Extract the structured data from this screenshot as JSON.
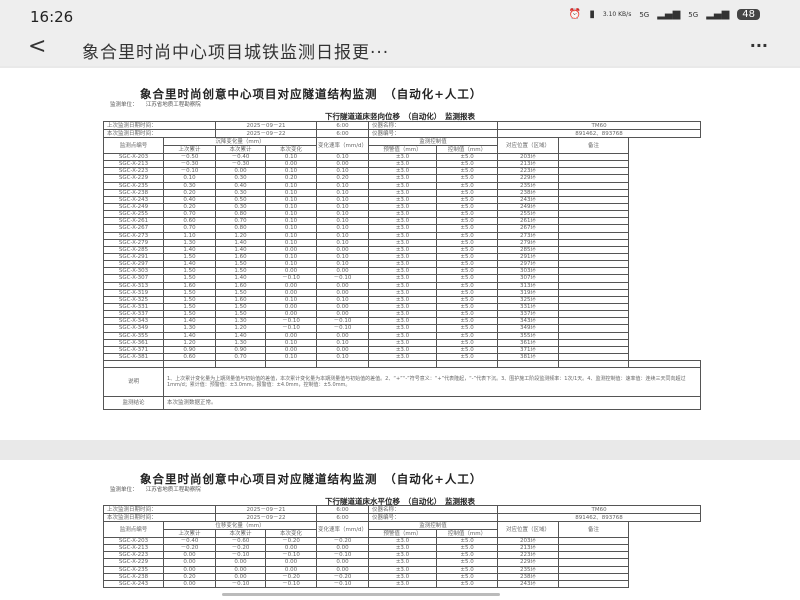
{
  "status_bar": {
    "time": "16:26",
    "net_speed": "3.10 KB/s",
    "signal1": "5G",
    "signal2": "5G",
    "battery": "48"
  },
  "app": {
    "title": "象合里时尚中心项目城铁监测日报更···",
    "back_icon": "chevron-left",
    "more_icon": "ellipsis"
  },
  "doc_title": "象合里时尚创意中心项目对应隧道结构监测　（自动化+人工）",
  "unit_label": "监测单位：",
  "unit_value": "江苏省地质工程勘察院",
  "info": {
    "last_label": "上次监测日期时间：",
    "last_date": "2025－09－21",
    "last_time": "6:00",
    "now_label": "本次监测日期时间：",
    "now_date": "2025－09－22",
    "now_time": "6:00",
    "inst_name_label": "仪器名称：",
    "inst_name": "TM60",
    "inst_no_label": "仪器编号：",
    "inst_no": "891462、893768"
  },
  "headers": {
    "point": "监测点编号",
    "rate": "变化速率（mm/d）",
    "control": "监测控制值",
    "warn": "预警值（mm）",
    "ctrl": "控制值（mm）",
    "pos": "对应位置（区域）",
    "remark": "备注",
    "last_cum": "上次累计",
    "this_cum": "本次累计",
    "this_chg": "本次变化"
  },
  "table1": {
    "subtitle": "下行隧道道床竖向位移　（自动化）　监测报表",
    "group": "沉降变化量（mm）",
    "rows": [
      [
        "SGC-X-203",
        "－0.50",
        "－0.40",
        "0.10",
        "0.10",
        "±3.0",
        "±5.0",
        "203环"
      ],
      [
        "SGC-X-213",
        "－0.30",
        "－0.30",
        "0.00",
        "0.00",
        "±3.0",
        "±5.0",
        "213环"
      ],
      [
        "SGC-X-223",
        "－0.10",
        "0.00",
        "0.10",
        "0.10",
        "±3.0",
        "±5.0",
        "223环"
      ],
      [
        "SGC-X-229",
        "0.10",
        "0.30",
        "0.20",
        "0.20",
        "±3.0",
        "±5.0",
        "229环"
      ],
      [
        "SGC-X-235",
        "0.30",
        "0.40",
        "0.10",
        "0.10",
        "±3.0",
        "±5.0",
        "235环"
      ],
      [
        "SGC-X-238",
        "0.20",
        "0.30",
        "0.10",
        "0.10",
        "±3.0",
        "±5.0",
        "238环"
      ],
      [
        "SGC-X-243",
        "0.40",
        "0.50",
        "0.10",
        "0.10",
        "±3.0",
        "±5.0",
        "243环"
      ],
      [
        "SGC-X-249",
        "0.20",
        "0.30",
        "0.10",
        "0.10",
        "±3.0",
        "±5.0",
        "249环"
      ],
      [
        "SGC-X-255",
        "0.70",
        "0.80",
        "0.10",
        "0.10",
        "±3.0",
        "±5.0",
        "255环"
      ],
      [
        "SGC-X-261",
        "0.60",
        "0.70",
        "0.10",
        "0.10",
        "±3.0",
        "±5.0",
        "261环"
      ],
      [
        "SGC-X-267",
        "0.70",
        "0.80",
        "0.10",
        "0.10",
        "±3.0",
        "±5.0",
        "267环"
      ],
      [
        "SGC-X-273",
        "1.10",
        "1.20",
        "0.10",
        "0.10",
        "±3.0",
        "±5.0",
        "273环"
      ],
      [
        "SGC-X-279",
        "1.30",
        "1.40",
        "0.10",
        "0.10",
        "±3.0",
        "±5.0",
        "279环"
      ],
      [
        "SGC-X-285",
        "1.40",
        "1.40",
        "0.00",
        "0.00",
        "±3.0",
        "±5.0",
        "285环"
      ],
      [
        "SGC-X-291",
        "1.50",
        "1.60",
        "0.10",
        "0.10",
        "±3.0",
        "±5.0",
        "291环"
      ],
      [
        "SGC-X-297",
        "1.40",
        "1.50",
        "0.10",
        "0.10",
        "±3.0",
        "±5.0",
        "297环"
      ],
      [
        "SGC-X-303",
        "1.50",
        "1.50",
        "0.00",
        "0.00",
        "±3.0",
        "±5.0",
        "303环"
      ],
      [
        "SGC-X-307",
        "1.50",
        "1.40",
        "－0.10",
        "－0.10",
        "±3.0",
        "±5.0",
        "307环"
      ],
      [
        "SGC-X-313",
        "1.60",
        "1.60",
        "0.00",
        "0.00",
        "±3.0",
        "±5.0",
        "313环"
      ],
      [
        "SGC-X-319",
        "1.50",
        "1.50",
        "0.00",
        "0.00",
        "±3.0",
        "±5.0",
        "319环"
      ],
      [
        "SGC-X-325",
        "1.50",
        "1.60",
        "0.10",
        "0.10",
        "±3.0",
        "±5.0",
        "325环"
      ],
      [
        "SGC-X-331",
        "1.50",
        "1.50",
        "0.00",
        "0.00",
        "±3.0",
        "±5.0",
        "331环"
      ],
      [
        "SGC-X-337",
        "1.50",
        "1.50",
        "0.00",
        "0.00",
        "±3.0",
        "±5.0",
        "337环"
      ],
      [
        "SGC-X-343",
        "1.40",
        "1.30",
        "－0.10",
        "－0.10",
        "±3.0",
        "±5.0",
        "343环"
      ],
      [
        "SGC-X-349",
        "1.30",
        "1.20",
        "－0.10",
        "－0.10",
        "±3.0",
        "±5.0",
        "349环"
      ],
      [
        "SGC-X-355",
        "1.40",
        "1.40",
        "0.00",
        "0.00",
        "±3.0",
        "±5.0",
        "355环"
      ],
      [
        "SGC-X-361",
        "1.20",
        "1.30",
        "0.10",
        "0.10",
        "±3.0",
        "±5.0",
        "361环"
      ],
      [
        "SGC-X-371",
        "0.90",
        "0.90",
        "0.00",
        "0.00",
        "±3.0",
        "±5.0",
        "371环"
      ],
      [
        "SGC-X-381",
        "0.60",
        "0.70",
        "0.10",
        "0.10",
        "±3.0",
        "±5.0",
        "381环"
      ]
    ],
    "notes_label": "说明",
    "notes": "1、上次累计变化量为上期测量值与初始值的差值，本次累计变化量为本期测量值与初始值的差值。2、“+”“-”符号意义：“+”代表隆起，“-”代表下沉。3、围护施工阶段监测频率：1次/1天。4、监测控制值：速率值：连续三天同向超过1mm/d；累计值：预警值：±3.0mm，报警值：±4.0mm，控制值：±5.0mm。",
    "conclusion_label": "监测结论",
    "conclusion": "本次监测数据正常。"
  },
  "table2": {
    "subtitle": "下行隧道道床水平位移　（自动化）　监测报表",
    "group": "位移变化量（mm）",
    "rows": [
      [
        "SGC-X-203",
        "－0.40",
        "－0.60",
        "－0.20",
        "－0.20",
        "±3.0",
        "±5.0",
        "203环"
      ],
      [
        "SGC-X-213",
        "－0.20",
        "－0.20",
        "0.00",
        "0.00",
        "±3.0",
        "±5.0",
        "213环"
      ],
      [
        "SGC-X-223",
        "0.00",
        "－0.10",
        "－0.10",
        "－0.10",
        "±3.0",
        "±5.0",
        "223环"
      ],
      [
        "SGC-X-229",
        "0.00",
        "0.00",
        "0.00",
        "0.00",
        "±3.0",
        "±5.0",
        "229环"
      ],
      [
        "SGC-X-235",
        "0.00",
        "0.00",
        "0.00",
        "0.00",
        "±3.0",
        "±5.0",
        "235环"
      ],
      [
        "SGC-X-238",
        "0.20",
        "0.00",
        "－0.20",
        "－0.20",
        "±3.0",
        "±5.0",
        "238环"
      ],
      [
        "SGC-X-243",
        "0.00",
        "－0.10",
        "－0.10",
        "－0.10",
        "±3.0",
        "±5.0",
        "243环"
      ]
    ]
  }
}
